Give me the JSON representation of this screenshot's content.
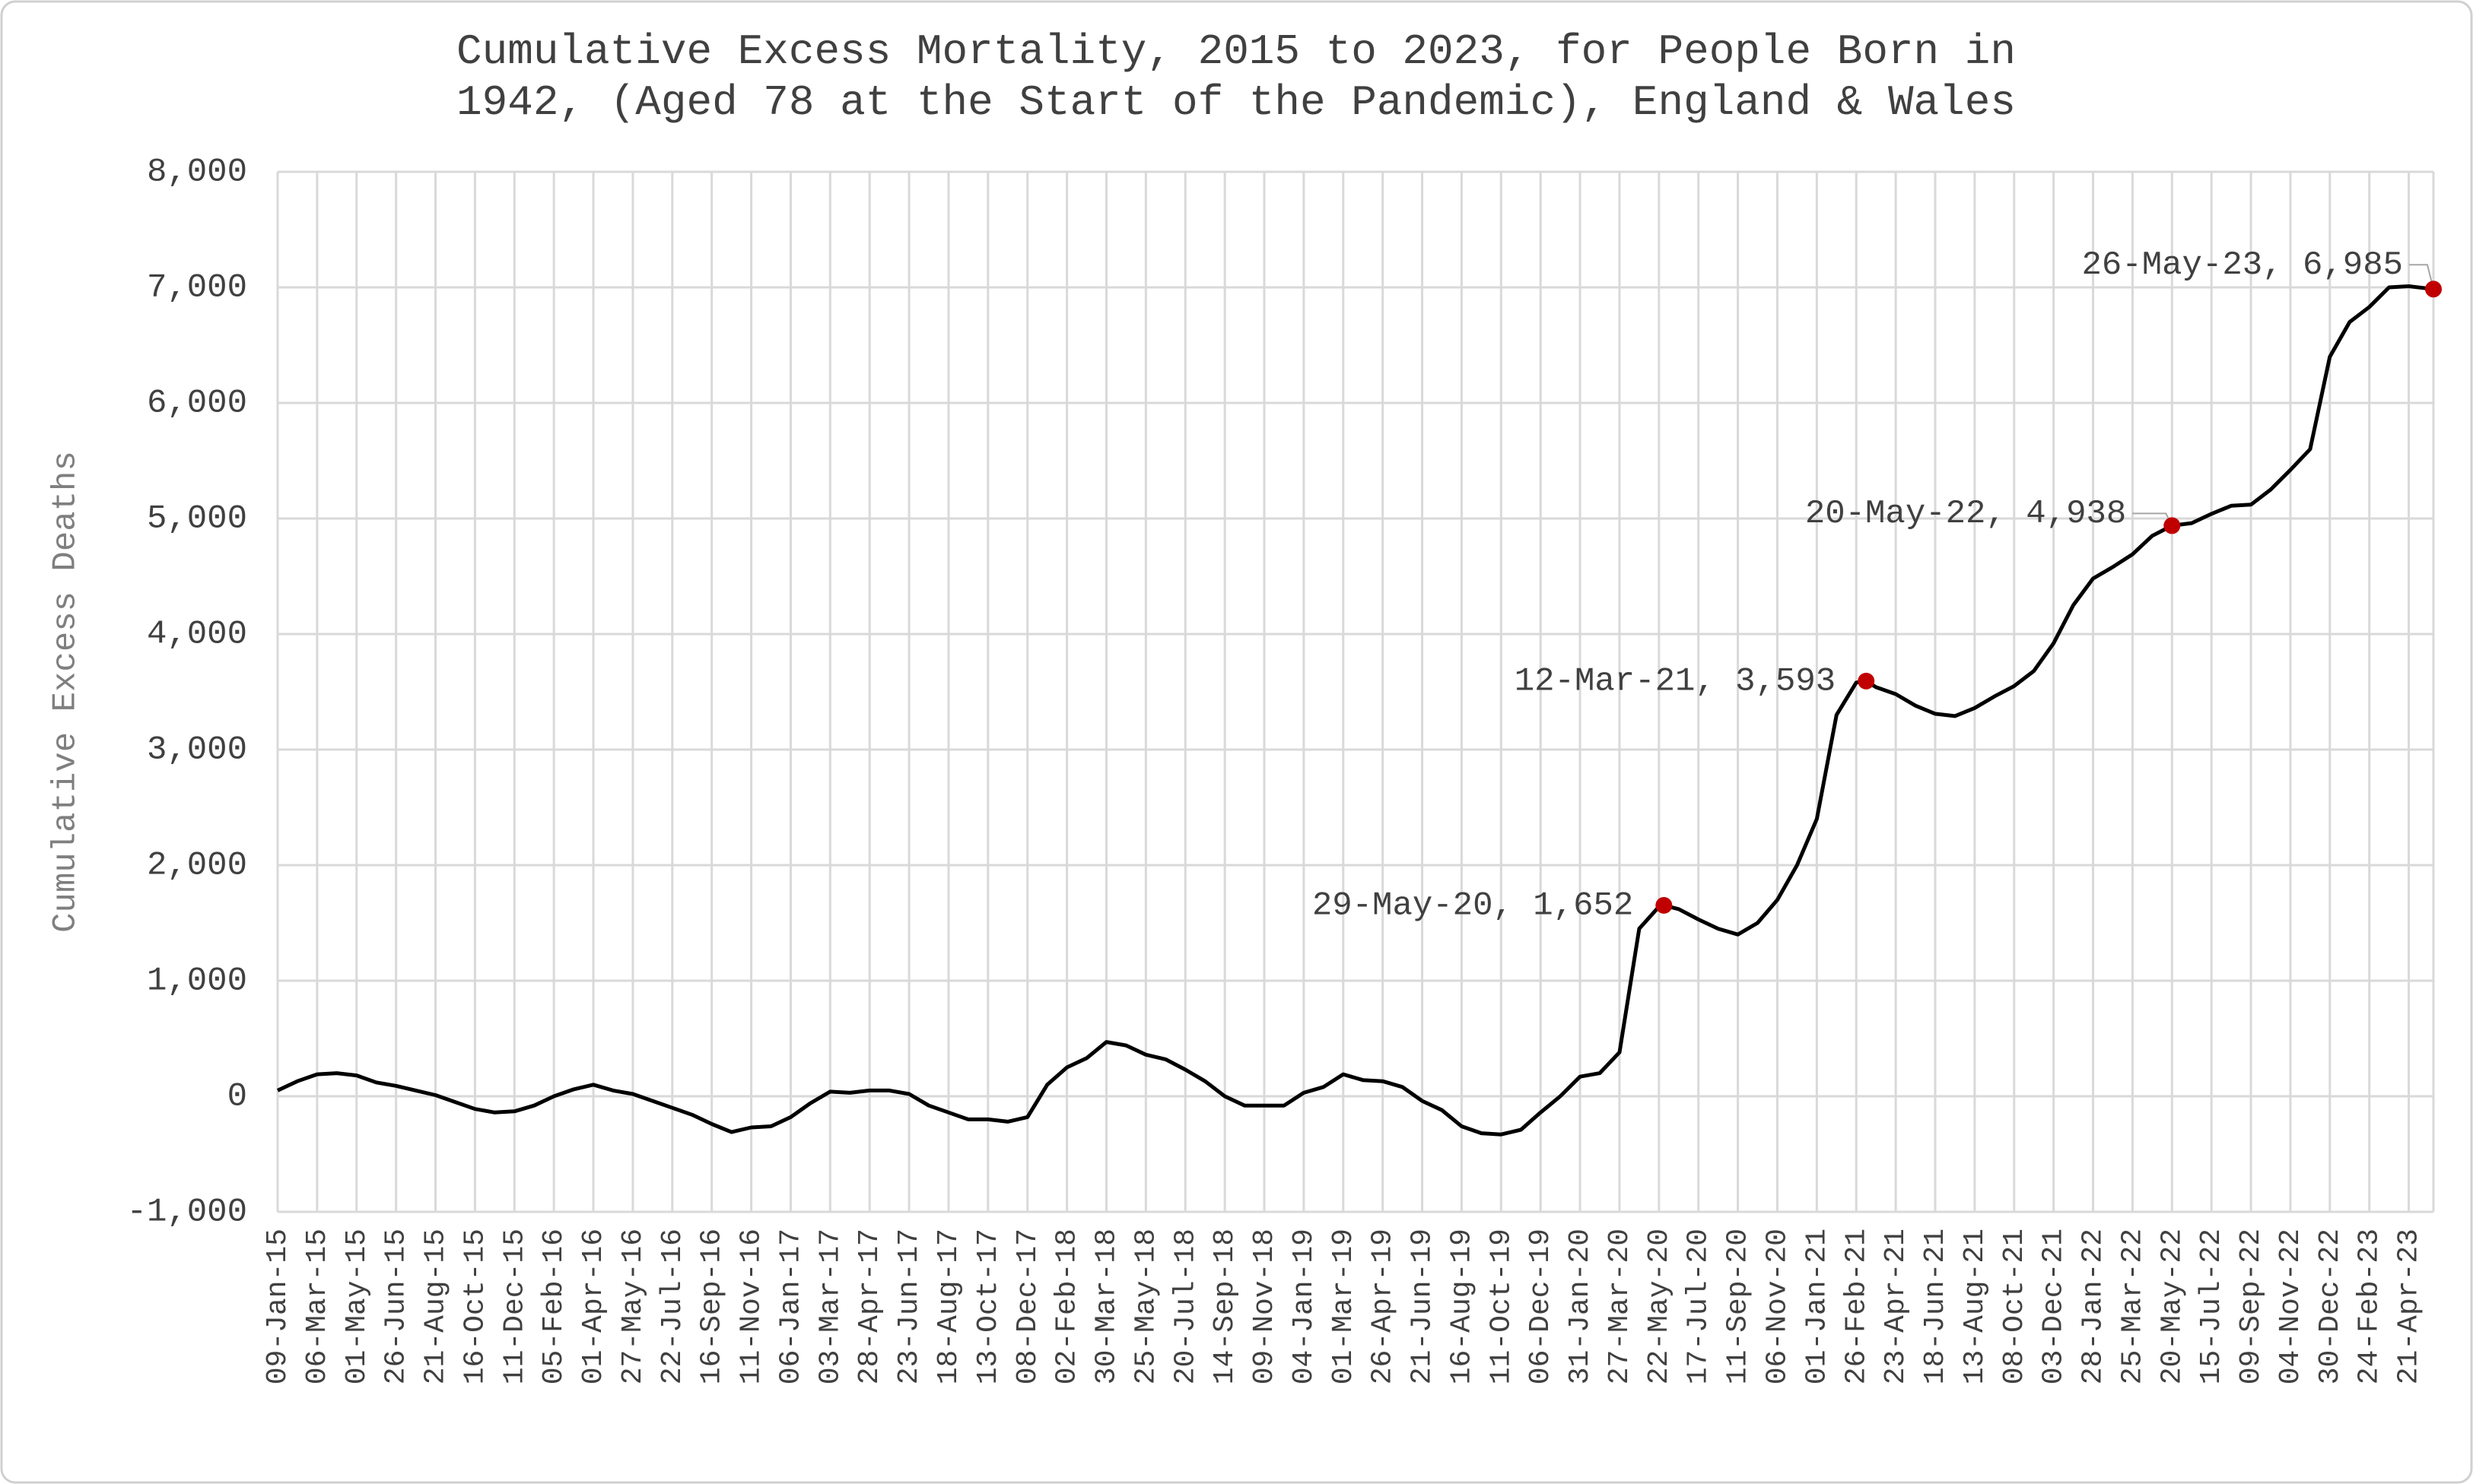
{
  "chart_data": {
    "type": "line",
    "title": [
      "Cumulative Excess Mortality, 2015 to 2023, for People Born in",
      "1942, (Aged 78 at the Start of the Pandemic), England & Wales"
    ],
    "ylabel": "Cumulative Excess Deaths",
    "color": "#000000",
    "marker_color": "#c00000",
    "grid": true,
    "xlim": [
      "09-Jan-15",
      "26-May-23"
    ],
    "ylim": [
      -1000,
      8000
    ],
    "yticks": [
      {
        "value": -1000,
        "label": "-1,000"
      },
      0,
      {
        "value": 1000,
        "label": "1,000"
      },
      {
        "value": 2000,
        "label": "2,000"
      },
      {
        "value": 3000,
        "label": "3,000"
      },
      {
        "value": 4000,
        "label": "4,000"
      },
      {
        "value": 5000,
        "label": "5,000"
      },
      {
        "value": 6000,
        "label": "6,000"
      },
      {
        "value": 7000,
        "label": "7,000"
      },
      {
        "value": 8000,
        "label": "8,000"
      }
    ],
    "xticks": [
      "09-Jan-15",
      "06-Mar-15",
      "01-May-15",
      "26-Jun-15",
      "21-Aug-15",
      "16-Oct-15",
      "11-Dec-15",
      "05-Feb-16",
      "01-Apr-16",
      "27-May-16",
      "22-Jul-16",
      "16-Sep-16",
      "11-Nov-16",
      "06-Jan-17",
      "03-Mar-17",
      "28-Apr-17",
      "23-Jun-17",
      "18-Aug-17",
      "13-Oct-17",
      "08-Dec-17",
      "02-Feb-18",
      "30-Mar-18",
      "25-May-18",
      "20-Jul-18",
      "14-Sep-18",
      "09-Nov-18",
      "04-Jan-19",
      "01-Mar-19",
      "26-Apr-19",
      "21-Jun-19",
      "16-Aug-19",
      "11-Oct-19",
      "06-Dec-19",
      "31-Jan-20",
      "27-Mar-20",
      "22-May-20",
      "17-Jul-20",
      "11-Sep-20",
      "06-Nov-20",
      "01-Jan-21",
      "26-Feb-21",
      "23-Apr-21",
      "18-Jun-21",
      "13-Aug-21",
      "08-Oct-21",
      "03-Dec-21",
      "28-Jan-22",
      "25-Mar-22",
      "20-May-22",
      "15-Jul-22",
      "09-Sep-22",
      "04-Nov-22",
      "30-Dec-22",
      "24-Feb-23",
      "21-Apr-23"
    ],
    "x": [
      "09-Jan-15",
      "06-Feb-15",
      "06-Mar-15",
      "03-Apr-15",
      "01-May-15",
      "29-May-15",
      "26-Jun-15",
      "24-Jul-15",
      "21-Aug-15",
      "18-Sep-15",
      "16-Oct-15",
      "13-Nov-15",
      "11-Dec-15",
      "08-Jan-16",
      "05-Feb-16",
      "04-Mar-16",
      "01-Apr-16",
      "29-Apr-16",
      "27-May-16",
      "24-Jun-16",
      "22-Jul-16",
      "19-Aug-16",
      "16-Sep-16",
      "14-Oct-16",
      "11-Nov-16",
      "09-Dec-16",
      "06-Jan-17",
      "03-Feb-17",
      "03-Mar-17",
      "31-Mar-17",
      "28-Apr-17",
      "26-May-17",
      "23-Jun-17",
      "21-Jul-17",
      "18-Aug-17",
      "15-Sep-17",
      "13-Oct-17",
      "10-Nov-17",
      "08-Dec-17",
      "05-Jan-18",
      "02-Feb-18",
      "02-Mar-18",
      "30-Mar-18",
      "27-Apr-18",
      "25-May-18",
      "22-Jun-18",
      "20-Jul-18",
      "17-Aug-18",
      "14-Sep-18",
      "12-Oct-18",
      "09-Nov-18",
      "07-Dec-18",
      "04-Jan-19",
      "01-Feb-19",
      "01-Mar-19",
      "29-Mar-19",
      "26-Apr-19",
      "24-May-19",
      "21-Jun-19",
      "19-Jul-19",
      "16-Aug-19",
      "13-Sep-19",
      "11-Oct-19",
      "08-Nov-19",
      "06-Dec-19",
      "03-Jan-20",
      "31-Jan-20",
      "28-Feb-20",
      "27-Mar-20",
      "24-Apr-20",
      "22-May-20",
      "29-May-20",
      "19-Jun-20",
      "17-Jul-20",
      "14-Aug-20",
      "11-Sep-20",
      "09-Oct-20",
      "06-Nov-20",
      "04-Dec-20",
      "01-Jan-21",
      "29-Jan-21",
      "26-Feb-21",
      "12-Mar-21",
      "26-Mar-21",
      "23-Apr-21",
      "21-May-21",
      "18-Jun-21",
      "16-Jul-21",
      "13-Aug-21",
      "10-Sep-21",
      "08-Oct-21",
      "05-Nov-21",
      "03-Dec-21",
      "31-Dec-21",
      "28-Jan-22",
      "25-Feb-22",
      "25-Mar-22",
      "22-Apr-22",
      "20-May-22",
      "17-Jun-22",
      "15-Jul-22",
      "12-Aug-22",
      "09-Sep-22",
      "07-Oct-22",
      "04-Nov-22",
      "02-Dec-22",
      "30-Dec-22",
      "27-Jan-23",
      "24-Feb-23",
      "24-Mar-23",
      "21-Apr-23",
      "26-May-23"
    ],
    "values": [
      50,
      130,
      190,
      200,
      180,
      120,
      90,
      50,
      10,
      -50,
      -110,
      -140,
      -130,
      -80,
      0,
      60,
      100,
      50,
      20,
      -40,
      -100,
      -160,
      -240,
      -310,
      -270,
      -260,
      -180,
      -60,
      40,
      30,
      50,
      50,
      20,
      -80,
      -140,
      -200,
      -200,
      -220,
      -180,
      100,
      250,
      330,
      470,
      440,
      360,
      320,
      230,
      130,
      0,
      -80,
      -80,
      -80,
      30,
      80,
      190,
      140,
      130,
      80,
      -40,
      -120,
      -260,
      -320,
      -330,
      -290,
      -140,
      0,
      170,
      200,
      380,
      1450,
      1640,
      1652,
      1620,
      1530,
      1450,
      1400,
      1500,
      1700,
      2000,
      2400,
      3300,
      3580,
      3593,
      3540,
      3480,
      3380,
      3310,
      3290,
      3360,
      3460,
      3550,
      3680,
      3920,
      4250,
      4480,
      4580,
      4690,
      4850,
      4938,
      4960,
      5040,
      5110,
      5120,
      5250,
      5420,
      5600,
      6400,
      6700,
      6830,
      7000,
      7010,
      6985
    ],
    "annotations": [
      {
        "x": "29-May-20",
        "y": 1652,
        "label": "29-May-20, 1,652"
      },
      {
        "x": "12-Mar-21",
        "y": 3593,
        "label": "12-Mar-21, 3,593"
      },
      {
        "x": "20-May-22",
        "y": 4938,
        "label": "20-May-22, 4,938"
      },
      {
        "x": "26-May-23",
        "y": 6985,
        "label": "26-May-23, 6,985"
      }
    ]
  }
}
